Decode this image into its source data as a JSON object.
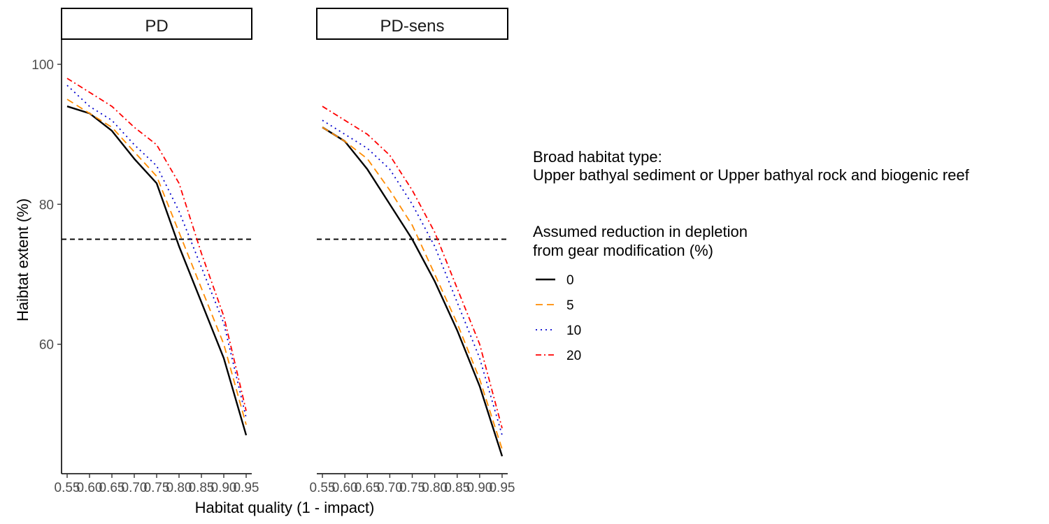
{
  "chart_data": {
    "type": "line",
    "facets": [
      {
        "label": "PD",
        "series": [
          {
            "name": "0",
            "x": [
              0.55,
              0.6,
              0.65,
              0.7,
              0.75,
              0.8,
              0.85,
              0.9,
              0.95
            ],
            "y": [
              94,
              93,
              90.5,
              86.5,
              83,
              74,
              66,
              58,
              47
            ]
          },
          {
            "name": "5",
            "x": [
              0.55,
              0.6,
              0.65,
              0.7,
              0.75,
              0.8,
              0.85,
              0.9,
              0.95
            ],
            "y": [
              95,
              93,
              91,
              87.5,
              84,
              76,
              68,
              60,
              48.5
            ]
          },
          {
            "name": "10",
            "x": [
              0.55,
              0.6,
              0.65,
              0.7,
              0.75,
              0.8,
              0.85,
              0.9,
              0.95
            ],
            "y": [
              97,
              94,
              92,
              88.5,
              85.5,
              79,
              71,
              63,
              49.5
            ]
          },
          {
            "name": "20",
            "x": [
              0.55,
              0.6,
              0.65,
              0.7,
              0.75,
              0.8,
              0.85,
              0.9,
              0.95
            ],
            "y": [
              98,
              96,
              94,
              91,
              88.5,
              83,
              73,
              64,
              50.5
            ]
          }
        ]
      },
      {
        "label": "PD-sens",
        "series": [
          {
            "name": "0",
            "x": [
              0.55,
              0.6,
              0.65,
              0.7,
              0.75,
              0.8,
              0.85,
              0.9,
              0.95
            ],
            "y": [
              91,
              89,
              85,
              80,
              75,
              69,
              62,
              54,
              44
            ]
          },
          {
            "name": "5",
            "x": [
              0.55,
              0.6,
              0.65,
              0.7,
              0.75,
              0.8,
              0.85,
              0.9,
              0.95
            ],
            "y": [
              91,
              89,
              86.5,
              82,
              77,
              70,
              63,
              55,
              45
            ]
          },
          {
            "name": "10",
            "x": [
              0.55,
              0.6,
              0.65,
              0.7,
              0.75,
              0.8,
              0.85,
              0.9,
              0.95
            ],
            "y": [
              92,
              90,
              88,
              85,
              80,
              74,
              66,
              58,
              47
            ]
          },
          {
            "name": "20",
            "x": [
              0.55,
              0.6,
              0.65,
              0.7,
              0.75,
              0.8,
              0.85,
              0.9,
              0.95
            ],
            "y": [
              94,
              92,
              90,
              87,
              82,
              76,
              68,
              60,
              48
            ]
          }
        ]
      }
    ],
    "xlabel": "Habitat quality (1 - impact)",
    "ylabel": "Haibtat extent (%)",
    "x_ticks": [
      "0.55",
      "0.60",
      "0.65",
      "0.70",
      "0.75",
      "0.80",
      "0.85",
      "0.90",
      "0.95"
    ],
    "x_tick_values": [
      0.55,
      0.6,
      0.65,
      0.7,
      0.75,
      0.8,
      0.85,
      0.9,
      0.95
    ],
    "y_ticks": [
      "60",
      "80",
      "100"
    ],
    "y_tick_values": [
      60,
      80,
      100
    ],
    "xlim": [
      0.5375,
      0.9625
    ],
    "ylim": [
      41.5,
      103.5
    ],
    "reference_line_y": 75,
    "grid": false,
    "legend": {
      "position": "right",
      "subtitle_line1": "Broad habitat type:",
      "subtitle_line2": "Upper bathyal sediment or Upper bathyal rock and biogenic reef",
      "title_line1": "Assumed reduction in depletion",
      "title_line2": "from gear modification (%)",
      "entries": [
        "0",
        "5",
        "10",
        "20"
      ]
    },
    "series_styles": {
      "0": {
        "color": "#000000",
        "dash": ""
      },
      "5": {
        "color": "#FF8C00",
        "dash": "10,6"
      },
      "10": {
        "color": "#0000CD",
        "dash": "2,5"
      },
      "20": {
        "color": "#FF0000",
        "dash": "8,4,2,4"
      }
    }
  }
}
